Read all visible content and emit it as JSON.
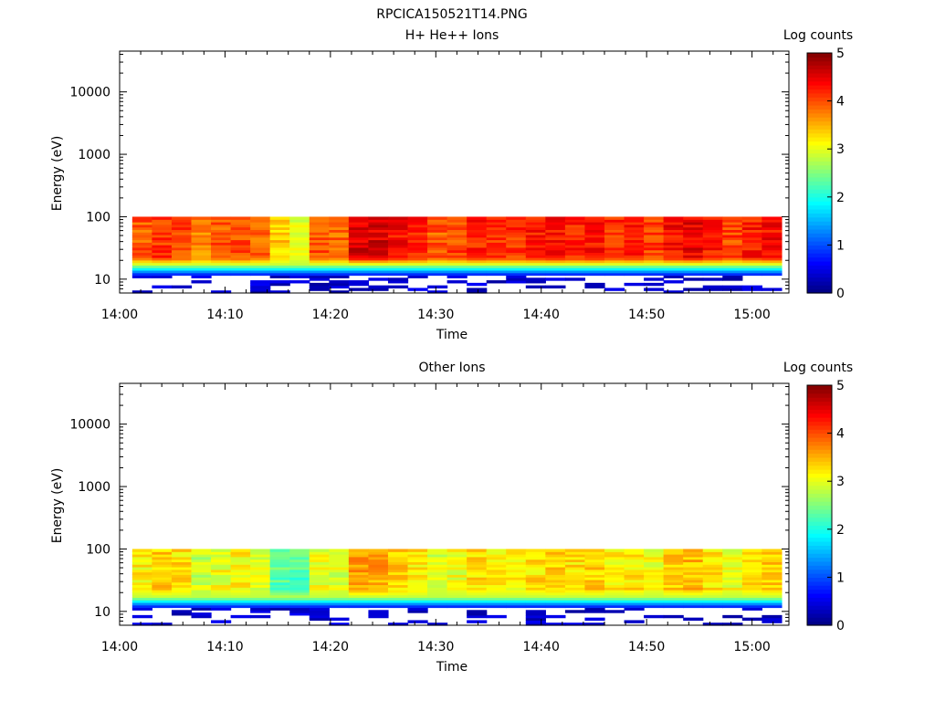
{
  "figure_title": "RPCICA150521T14.PNG",
  "chart_data": [
    {
      "type": "heatmap",
      "title": "H+ He++ Ions",
      "xlabel": "Time",
      "ylabel": "Energy (eV)",
      "x_ticks": [
        "14:00",
        "14:10",
        "14:20",
        "14:30",
        "14:40",
        "14:50",
        "15:00"
      ],
      "x_range_minutes": [
        0,
        63.5
      ],
      "y_scale": "log",
      "y_ticks": [
        "10",
        "100",
        "1000",
        "10000"
      ],
      "y_range": [
        6,
        45000
      ],
      "data_extent": {
        "t_start_minutes": 1.2,
        "t_end_minutes": 62.8,
        "e_min": 6,
        "e_max": 100
      },
      "colorbar": {
        "label": "Log counts",
        "range": [
          0,
          5
        ],
        "ticks": [
          "0",
          "1",
          "2",
          "3",
          "4",
          "5"
        ],
        "colormap": "jet"
      },
      "time_columns": 33,
      "column_peak_log_counts": [
        4.3,
        4.5,
        4.4,
        4.1,
        4.3,
        4.4,
        4.2,
        3.7,
        3.4,
        4.3,
        4.2,
        4.9,
        4.9,
        4.7,
        4.6,
        4.3,
        4.4,
        4.6,
        4.5,
        4.5,
        4.6,
        4.7,
        4.6,
        4.7,
        4.5,
        4.6,
        4.4,
        4.7,
        4.8,
        4.6,
        4.4,
        4.6,
        4.7
      ]
    },
    {
      "type": "heatmap",
      "title": "Other Ions",
      "xlabel": "Time",
      "ylabel": "Energy (eV)",
      "x_ticks": [
        "14:00",
        "14:10",
        "14:20",
        "14:30",
        "14:40",
        "14:50",
        "15:00"
      ],
      "x_range_minutes": [
        0,
        63.5
      ],
      "y_scale": "log",
      "y_ticks": [
        "10",
        "100",
        "1000",
        "10000"
      ],
      "y_range": [
        6,
        45000
      ],
      "data_extent": {
        "t_start_minutes": 1.2,
        "t_end_minutes": 62.8,
        "e_min": 6,
        "e_max": 100
      },
      "colorbar": {
        "label": "Log counts",
        "range": [
          0,
          5
        ],
        "ticks": [
          "0",
          "1",
          "2",
          "3",
          "4",
          "5"
        ],
        "colormap": "jet"
      },
      "time_columns": 33,
      "column_peak_log_counts": [
        3.5,
        3.7,
        3.6,
        3.2,
        3.4,
        3.5,
        3.3,
        2.7,
        2.6,
        3.4,
        3.3,
        3.9,
        3.9,
        3.7,
        3.6,
        3.3,
        3.4,
        3.6,
        3.5,
        3.5,
        3.6,
        3.7,
        3.6,
        3.7,
        3.5,
        3.6,
        3.4,
        3.7,
        3.8,
        3.6,
        3.4,
        3.6,
        3.7
      ]
    }
  ]
}
